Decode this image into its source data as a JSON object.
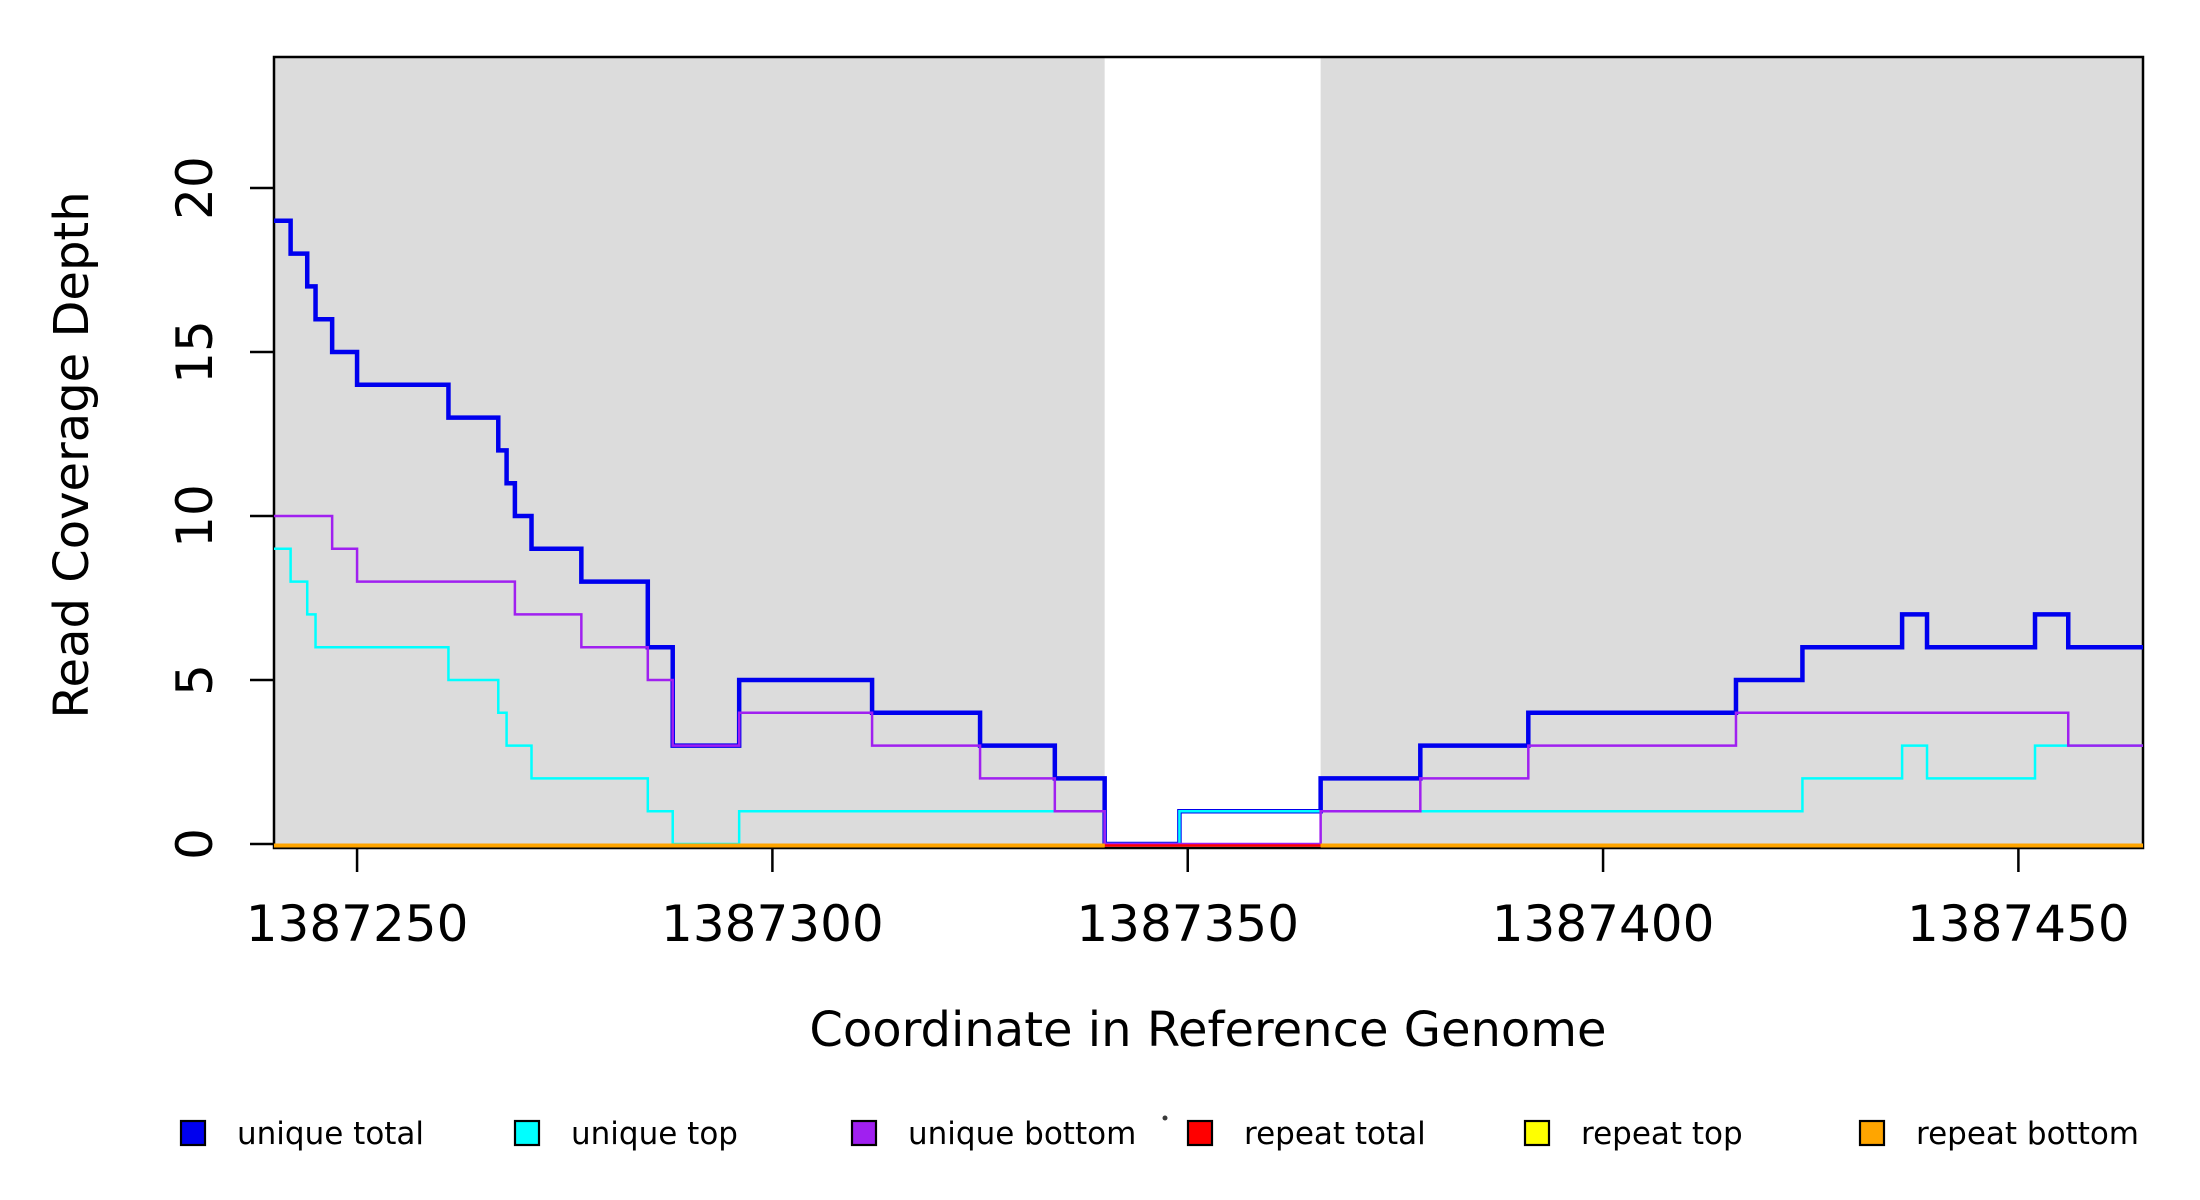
{
  "chart_data": {
    "type": "line",
    "subtype": "step",
    "title": "",
    "xlabel": "Coordinate in Reference Genome",
    "ylabel": "Read Coverage Depth",
    "xlim": [
      1387240,
      1387465
    ],
    "ylim": [
      0,
      24
    ],
    "x_ticks": [
      1387250,
      1387300,
      1387350,
      1387400,
      1387450
    ],
    "y_ticks": [
      0,
      5,
      10,
      15,
      20
    ],
    "grid": false,
    "plot_background_color": "#DCDCDC",
    "masked_gap": {
      "x1": 1387340,
      "x2": 1387366,
      "color": "#FFFFFF"
    },
    "background_regions": [
      {
        "x1": 1387240,
        "x2": 1387340,
        "color": "#DCDCDC"
      },
      {
        "x1": 1387366,
        "x2": 1387465,
        "color": "#DCDCDC"
      }
    ],
    "series": [
      {
        "name": "unique total",
        "color": "#0000EE",
        "width": 4.5,
        "steps": [
          [
            1387240,
            19
          ],
          [
            1387242,
            18
          ],
          [
            1387244,
            17
          ],
          [
            1387245,
            16
          ],
          [
            1387247,
            15
          ],
          [
            1387250,
            14
          ],
          [
            1387261,
            13
          ],
          [
            1387267,
            12
          ],
          [
            1387268,
            11
          ],
          [
            1387269,
            10
          ],
          [
            1387271,
            9
          ],
          [
            1387277,
            8
          ],
          [
            1387285,
            6
          ],
          [
            1387288,
            3
          ],
          [
            1387296,
            5
          ],
          [
            1387312,
            4
          ],
          [
            1387325,
            3
          ],
          [
            1387334,
            2
          ],
          [
            1387340,
            0
          ],
          [
            1387349,
            1
          ],
          [
            1387366,
            2
          ],
          [
            1387378,
            3
          ],
          [
            1387391,
            4
          ],
          [
            1387416,
            5
          ],
          [
            1387424,
            6
          ],
          [
            1387436,
            7
          ],
          [
            1387439,
            6
          ],
          [
            1387452,
            7
          ],
          [
            1387456,
            6
          ]
        ]
      },
      {
        "name": "unique top",
        "color": "#00FFFF",
        "width": 2.5,
        "steps": [
          [
            1387240,
            9
          ],
          [
            1387242,
            8
          ],
          [
            1387244,
            7
          ],
          [
            1387245,
            6
          ],
          [
            1387261,
            5
          ],
          [
            1387267,
            4
          ],
          [
            1387268,
            3
          ],
          [
            1387271,
            2
          ],
          [
            1387285,
            1
          ],
          [
            1387288,
            0
          ],
          [
            1387296,
            1
          ],
          [
            1387340,
            0
          ],
          [
            1387349,
            1
          ],
          [
            1387424,
            2
          ],
          [
            1387436,
            3
          ],
          [
            1387439,
            2
          ],
          [
            1387452,
            3
          ]
        ]
      },
      {
        "name": "unique bottom",
        "color": "#A020F0",
        "width": 2.5,
        "steps": [
          [
            1387240,
            10
          ],
          [
            1387247,
            9
          ],
          [
            1387250,
            8
          ],
          [
            1387269,
            7
          ],
          [
            1387277,
            6
          ],
          [
            1387285,
            5
          ],
          [
            1387288,
            3
          ],
          [
            1387296,
            4
          ],
          [
            1387312,
            3
          ],
          [
            1387325,
            2
          ],
          [
            1387334,
            1
          ],
          [
            1387340,
            0
          ],
          [
            1387366,
            1
          ],
          [
            1387378,
            2
          ],
          [
            1387391,
            3
          ],
          [
            1387416,
            4
          ],
          [
            1387456,
            3
          ]
        ]
      },
      {
        "name": "repeat total",
        "color": "#FF0000",
        "width": 2.5,
        "steps": [
          [
            1387240,
            0
          ]
        ]
      },
      {
        "name": "repeat top",
        "color": "#FFFF00",
        "width": 2.5,
        "steps": [
          [
            1387240,
            0
          ],
          [
            1387340,
            null
          ],
          [
            1387366,
            0
          ]
        ]
      },
      {
        "name": "repeat bottom",
        "color": "#FFA500",
        "width": 4,
        "steps": [
          [
            1387240,
            0
          ],
          [
            1387340,
            null
          ],
          [
            1387366,
            0
          ]
        ]
      }
    ],
    "legend": {
      "position": "bottom",
      "entries": [
        {
          "label": "unique total",
          "color": "#0000EE"
        },
        {
          "label": "unique top",
          "color": "#00FFFF"
        },
        {
          "label": "unique bottom",
          "color": "#A020F0"
        },
        {
          "label": "repeat total",
          "color": "#FF0000"
        },
        {
          "label": "repeat top",
          "color": "#FFFF00"
        },
        {
          "label": "repeat bottom",
          "color": "#FFA500"
        }
      ]
    }
  }
}
